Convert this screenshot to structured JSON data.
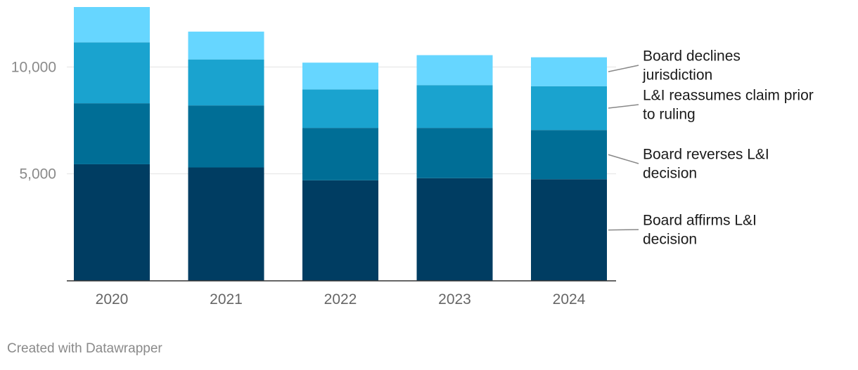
{
  "chart_data": {
    "type": "bar",
    "stacked": true,
    "categories": [
      "2020",
      "2021",
      "2022",
      "2023",
      "2024"
    ],
    "series": [
      {
        "name": "Board affirms L&I decision",
        "color": "#003d62",
        "values": [
          5450,
          5300,
          4700,
          4800,
          4750
        ]
      },
      {
        "name": "Board reverses L&I decision",
        "color": "#006e96",
        "values": [
          2850,
          2900,
          2450,
          2350,
          2300
        ]
      },
      {
        "name": "L&I reassumes claim prior to ruling",
        "color": "#1aa3cf",
        "values": [
          2850,
          2150,
          1800,
          2000,
          2050
        ]
      },
      {
        "name": "Board declines jurisdiction",
        "color": "#66d6ff",
        "values": [
          1650,
          1300,
          1250,
          1400,
          1350
        ]
      }
    ],
    "yticks": [
      {
        "value": 5000,
        "label": "5,000"
      },
      {
        "value": 10000,
        "label": "10,000"
      }
    ],
    "ylim": [
      0,
      12800
    ],
    "legend_placement": "right, labels beside the last bar",
    "grid": true,
    "title": "",
    "xlabel": "",
    "ylabel": ""
  },
  "footer": {
    "credit": "Created with Datawrapper"
  }
}
